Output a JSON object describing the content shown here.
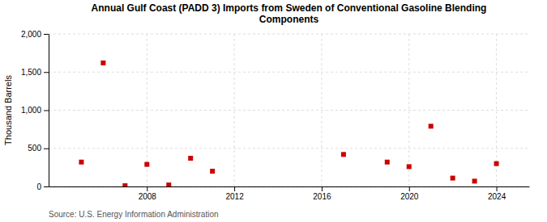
{
  "chart_data": {
    "type": "scatter",
    "title": "Annual Gulf Coast (PADD 3) Imports from Sweden of Conventional Gasoline Blending\nComponents",
    "y_label": "Thousand Barrels",
    "source": "Source: U.S. Energy Information Administration",
    "x": [
      2005,
      2006,
      2007,
      2008,
      2009,
      2010,
      2011,
      2017,
      2019,
      2020,
      2021,
      2022,
      2023,
      2024
    ],
    "values": [
      320,
      1620,
      10,
      290,
      20,
      370,
      200,
      420,
      320,
      260,
      790,
      110,
      70,
      300
    ],
    "color": "#cc0000",
    "marker": "square",
    "xlim": [
      2003.5,
      2025.5
    ],
    "ylim": [
      0,
      2000
    ],
    "xticks": [
      2008,
      2012,
      2016,
      2020,
      2024
    ],
    "yticks": [
      0,
      500,
      {
        "value": 1000,
        "label": "1,000"
      },
      {
        "value": 1500,
        "label": "1,500"
      },
      {
        "value": 2000,
        "label": "2,000"
      }
    ],
    "grid": true
  }
}
